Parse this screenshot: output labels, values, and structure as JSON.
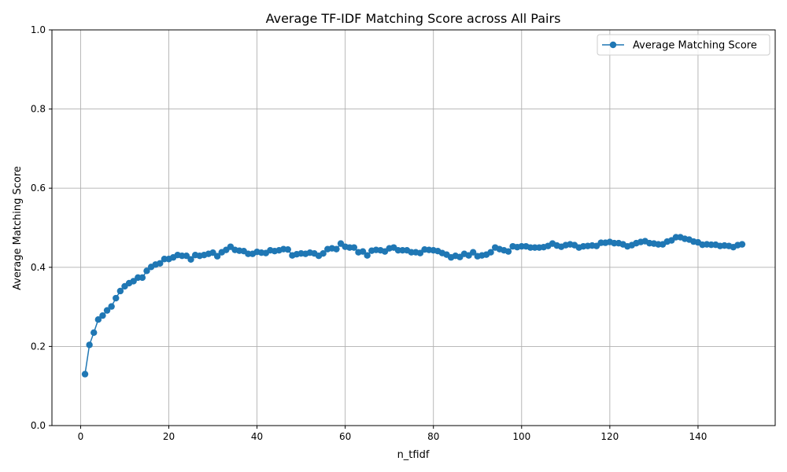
{
  "chart_data": {
    "type": "line",
    "title": "Average TF-IDF Matching Score across All Pairs",
    "xlabel": "n_tfidf",
    "ylabel": "Average Matching Score",
    "xlim": [
      -6.5,
      157.5
    ],
    "ylim": [
      0.0,
      1.0
    ],
    "xticks": [
      0,
      20,
      40,
      60,
      80,
      100,
      120,
      140
    ],
    "yticks": [
      0.0,
      0.2,
      0.4,
      0.6,
      0.8,
      1.0
    ],
    "xtick_labels": [
      "0",
      "20",
      "40",
      "60",
      "80",
      "100",
      "120",
      "140"
    ],
    "ytick_labels": [
      "0.0",
      "0.2",
      "0.4",
      "0.6",
      "0.8",
      "1.0"
    ],
    "grid": true,
    "legend": {
      "position": "top-right"
    },
    "colors": {
      "series": "#1f77b4",
      "grid": "#b0b0b0"
    },
    "series": [
      {
        "name": "Average Matching Score",
        "marker": "circle",
        "x_start": 1,
        "x_step": 1,
        "values": [
          0.13,
          0.204,
          0.235,
          0.268,
          0.278,
          0.291,
          0.301,
          0.322,
          0.34,
          0.352,
          0.36,
          0.365,
          0.374,
          0.374,
          0.391,
          0.401,
          0.407,
          0.41,
          0.421,
          0.421,
          0.425,
          0.431,
          0.429,
          0.429,
          0.42,
          0.431,
          0.429,
          0.431,
          0.434,
          0.437,
          0.428,
          0.438,
          0.444,
          0.452,
          0.444,
          0.442,
          0.441,
          0.434,
          0.434,
          0.439,
          0.437,
          0.436,
          0.443,
          0.441,
          0.443,
          0.446,
          0.445,
          0.43,
          0.433,
          0.435,
          0.434,
          0.437,
          0.435,
          0.429,
          0.435,
          0.446,
          0.448,
          0.446,
          0.46,
          0.452,
          0.45,
          0.45,
          0.438,
          0.44,
          0.43,
          0.442,
          0.444,
          0.443,
          0.44,
          0.448,
          0.45,
          0.443,
          0.443,
          0.443,
          0.438,
          0.438,
          0.436,
          0.445,
          0.444,
          0.443,
          0.441,
          0.436,
          0.432,
          0.425,
          0.429,
          0.426,
          0.434,
          0.43,
          0.438,
          0.428,
          0.43,
          0.432,
          0.438,
          0.45,
          0.446,
          0.443,
          0.44,
          0.453,
          0.451,
          0.453,
          0.453,
          0.45,
          0.45,
          0.45,
          0.451,
          0.454,
          0.46,
          0.455,
          0.452,
          0.456,
          0.458,
          0.456,
          0.45,
          0.453,
          0.454,
          0.455,
          0.454,
          0.462,
          0.462,
          0.464,
          0.461,
          0.461,
          0.458,
          0.453,
          0.456,
          0.461,
          0.464,
          0.466,
          0.461,
          0.46,
          0.458,
          0.458,
          0.465,
          0.468,
          0.476,
          0.476,
          0.472,
          0.47,
          0.465,
          0.463,
          0.457,
          0.458,
          0.457,
          0.457,
          0.454,
          0.455,
          0.454,
          0.451,
          0.456,
          0.458
        ]
      }
    ]
  }
}
